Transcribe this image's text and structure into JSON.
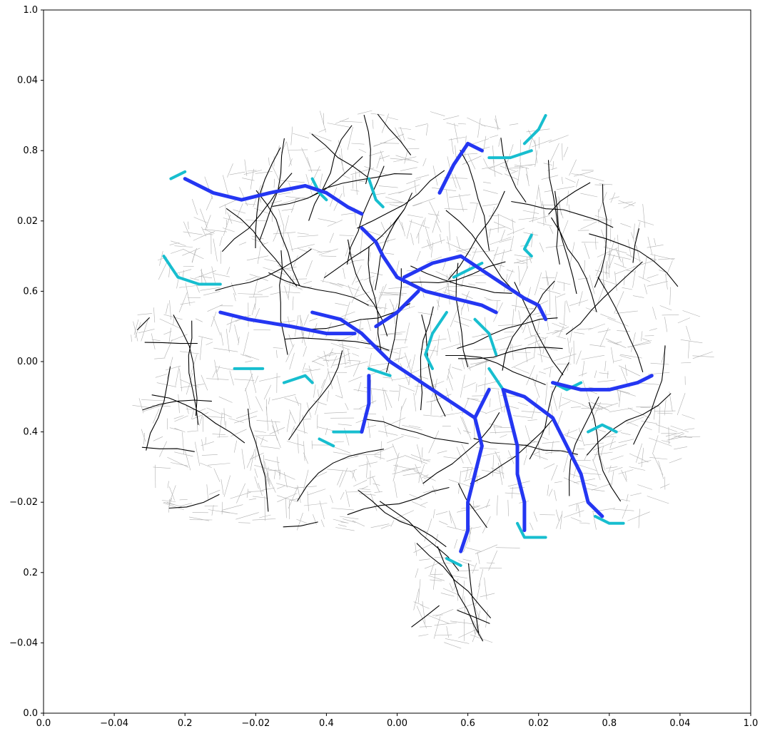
{
  "figure": {
    "background": "#ffffff",
    "axes_frame_color": "#000000"
  },
  "overlay_axes": {
    "x_ticks": [
      "0.0",
      "0.2",
      "0.4",
      "0.6",
      "0.8",
      "1.0"
    ],
    "y_ticks": [
      "0.0",
      "0.2",
      "0.4",
      "0.6",
      "0.8",
      "1.0"
    ]
  },
  "map_axes": {
    "x_ticks": [
      "−0.04",
      "−0.02",
      "0.00",
      "0.02",
      "0.04"
    ],
    "y_ticks": [
      "−0.04",
      "−0.02",
      "0.00",
      "0.02",
      "0.04"
    ]
  },
  "map_legend_colors": {
    "minor_streets": "#b0b0b0",
    "major_roads": "#000000",
    "route_primary": "#2436f2",
    "route_secondary": "#17becf"
  },
  "chart_data": {
    "type": "scatter",
    "description_units": "degrees offset from map center",
    "xlim": [
      -0.05,
      0.05
    ],
    "ylim": [
      -0.05,
      0.05
    ],
    "route_primary_paths": [
      [
        [
          -0.03,
          0.026
        ],
        [
          -0.026,
          0.024
        ],
        [
          -0.022,
          0.023
        ],
        [
          -0.018,
          0.024
        ],
        [
          -0.013,
          0.025
        ],
        [
          -0.01,
          0.024
        ],
        [
          -0.007,
          0.022
        ],
        [
          -0.005,
          0.021
        ]
      ],
      [
        [
          -0.005,
          0.019
        ],
        [
          -0.003,
          0.017
        ],
        [
          -0.002,
          0.015
        ],
        [
          0.0,
          0.012
        ],
        [
          0.004,
          0.01
        ],
        [
          0.008,
          0.009
        ],
        [
          0.012,
          0.008
        ],
        [
          0.014,
          0.007
        ]
      ],
      [
        [
          -0.012,
          0.007
        ],
        [
          -0.008,
          0.006
        ],
        [
          -0.005,
          0.004
        ],
        [
          -0.003,
          0.002
        ],
        [
          -0.001,
          0.0
        ],
        [
          0.002,
          -0.002
        ],
        [
          0.005,
          -0.004
        ],
        [
          0.008,
          -0.006
        ],
        [
          0.011,
          -0.008
        ]
      ],
      [
        [
          -0.025,
          0.007
        ],
        [
          -0.021,
          0.006
        ],
        [
          -0.015,
          0.005
        ],
        [
          -0.01,
          0.004
        ],
        [
          -0.006,
          0.004
        ]
      ],
      [
        [
          0.006,
          0.024
        ],
        [
          0.008,
          0.028
        ],
        [
          0.01,
          0.031
        ],
        [
          0.012,
          0.03
        ]
      ],
      [
        [
          0.003,
          0.01
        ],
        [
          0.0,
          0.007
        ],
        [
          -0.003,
          0.005
        ]
      ],
      [
        [
          -0.004,
          -0.002
        ],
        [
          -0.004,
          -0.006
        ],
        [
          -0.005,
          -0.01
        ]
      ],
      [
        [
          0.001,
          0.012
        ],
        [
          0.005,
          0.014
        ],
        [
          0.009,
          0.015
        ],
        [
          0.012,
          0.013
        ],
        [
          0.015,
          0.011
        ],
        [
          0.018,
          0.009
        ],
        [
          0.02,
          0.008
        ],
        [
          0.021,
          0.006
        ]
      ],
      [
        [
          0.015,
          -0.004
        ],
        [
          0.016,
          -0.008
        ],
        [
          0.017,
          -0.012
        ],
        [
          0.017,
          -0.016
        ],
        [
          0.018,
          -0.02
        ],
        [
          0.018,
          -0.024
        ]
      ],
      [
        [
          0.013,
          -0.004
        ],
        [
          0.011,
          -0.008
        ],
        [
          0.012,
          -0.012
        ],
        [
          0.011,
          -0.016
        ],
        [
          0.01,
          -0.02
        ],
        [
          0.01,
          -0.024
        ],
        [
          0.009,
          -0.027
        ]
      ],
      [
        [
          0.015,
          -0.004
        ],
        [
          0.018,
          -0.005
        ],
        [
          0.022,
          -0.008
        ],
        [
          0.024,
          -0.012
        ],
        [
          0.026,
          -0.016
        ],
        [
          0.027,
          -0.02
        ],
        [
          0.029,
          -0.022
        ]
      ],
      [
        [
          0.022,
          -0.003
        ],
        [
          0.026,
          -0.004
        ],
        [
          0.03,
          -0.004
        ],
        [
          0.034,
          -0.003
        ],
        [
          0.036,
          -0.002
        ]
      ]
    ],
    "route_secondary_paths": [
      [
        [
          -0.033,
          0.015
        ],
        [
          -0.031,
          0.012
        ],
        [
          -0.028,
          0.011
        ],
        [
          -0.025,
          0.011
        ]
      ],
      [
        [
          -0.032,
          0.026
        ],
        [
          -0.03,
          0.027
        ]
      ],
      [
        [
          -0.012,
          0.026
        ],
        [
          -0.011,
          0.024
        ],
        [
          -0.01,
          0.023
        ]
      ],
      [
        [
          -0.004,
          0.026
        ],
        [
          -0.003,
          0.023
        ],
        [
          -0.002,
          0.022
        ]
      ],
      [
        [
          0.013,
          0.029
        ],
        [
          0.016,
          0.029
        ],
        [
          0.019,
          0.03
        ]
      ],
      [
        [
          0.018,
          0.031
        ],
        [
          0.02,
          0.033
        ],
        [
          0.021,
          0.035
        ]
      ],
      [
        [
          0.019,
          0.018
        ],
        [
          0.018,
          0.016
        ],
        [
          0.019,
          0.015
        ]
      ],
      [
        [
          0.012,
          0.014
        ],
        [
          0.01,
          0.013
        ],
        [
          0.008,
          0.012
        ]
      ],
      [
        [
          0.007,
          0.007
        ],
        [
          0.005,
          0.004
        ],
        [
          0.004,
          0.001
        ],
        [
          0.005,
          -0.001
        ]
      ],
      [
        [
          0.011,
          0.006
        ],
        [
          0.013,
          0.004
        ],
        [
          0.014,
          0.001
        ]
      ],
      [
        [
          0.013,
          -0.001
        ],
        [
          0.015,
          -0.004
        ]
      ],
      [
        [
          0.022,
          -0.003
        ],
        [
          0.024,
          -0.004
        ],
        [
          0.026,
          -0.003
        ]
      ],
      [
        [
          0.027,
          -0.01
        ],
        [
          0.029,
          -0.009
        ],
        [
          0.031,
          -0.01
        ]
      ],
      [
        [
          0.028,
          -0.022
        ],
        [
          0.03,
          -0.023
        ],
        [
          0.032,
          -0.023
        ]
      ],
      [
        [
          0.017,
          -0.023
        ],
        [
          0.018,
          -0.025
        ],
        [
          0.021,
          -0.025
        ]
      ],
      [
        [
          0.007,
          -0.028
        ],
        [
          0.009,
          -0.029
        ]
      ],
      [
        [
          -0.011,
          -0.011
        ],
        [
          -0.009,
          -0.012
        ]
      ],
      [
        [
          -0.023,
          -0.001
        ],
        [
          -0.019,
          -0.001
        ]
      ],
      [
        [
          -0.016,
          -0.003
        ],
        [
          -0.013,
          -0.002
        ],
        [
          -0.012,
          -0.003
        ]
      ],
      [
        [
          -0.004,
          -0.001
        ],
        [
          -0.001,
          -0.002
        ]
      ],
      [
        [
          -0.009,
          -0.01
        ],
        [
          -0.005,
          -0.01
        ]
      ]
    ]
  }
}
